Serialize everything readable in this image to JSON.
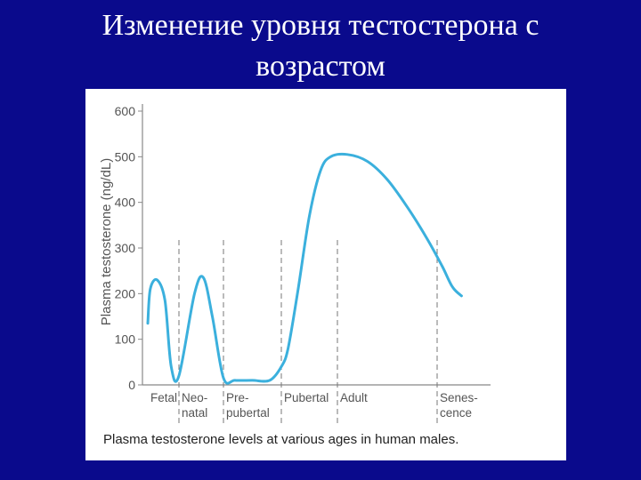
{
  "slide": {
    "title_line1": "Изменение уровня тестостерона с",
    "title_line2": "возрастом"
  },
  "colors": {
    "background": "#0a0a8c",
    "panel": "#ffffff",
    "curve": "#3bb0dd",
    "axis": "#888888",
    "text": "#555555"
  },
  "chart_data": {
    "type": "line",
    "title": "",
    "caption": "Plasma testosterone levels at various ages in human males.",
    "xlabel": "",
    "ylabel": "Plasma testosterone (ng/dL)",
    "ylim": [
      0,
      600
    ],
    "yticks": [
      0,
      100,
      200,
      300,
      400,
      500,
      600
    ],
    "grid": false,
    "legend": "none",
    "x_scale": "categorical life stages (unevenly spaced)",
    "stages": [
      {
        "lines": [
          "Fetal"
        ]
      },
      {
        "lines": [
          "Neo-",
          "natal"
        ]
      },
      {
        "lines": [
          "Pre-",
          "pubertal"
        ]
      },
      {
        "lines": [
          "Pubertal"
        ]
      },
      {
        "lines": [
          "Adult"
        ]
      },
      {
        "lines": [
          "Senes-",
          "cence"
        ]
      }
    ],
    "boundaries": [
      "Fetal | Neonatal",
      "Neonatal | Prepubertal",
      "Prepubertal | Pubertal",
      "Pubertal | Adult",
      "Adult | Senescence"
    ],
    "series": [
      {
        "stage_position": [
          0,
          0.08,
          0.3,
          0.55,
          0.75,
          1.0,
          1.35,
          1.55,
          1.75,
          2.0,
          2.2,
          2.5,
          2.8,
          3.0,
          3.12,
          3.3,
          3.5,
          3.7,
          3.88,
          4.1,
          4.3,
          4.5,
          4.7,
          4.9,
          5.1,
          5.3,
          5.48
        ],
        "values": [
          135,
          210,
          230,
          185,
          40,
          20,
          200,
          235,
          150,
          15,
          10,
          10,
          10,
          40,
          80,
          210,
          370,
          470,
          500,
          505,
          490,
          450,
          390,
          320,
          260,
          215,
          195
        ]
      }
    ]
  }
}
